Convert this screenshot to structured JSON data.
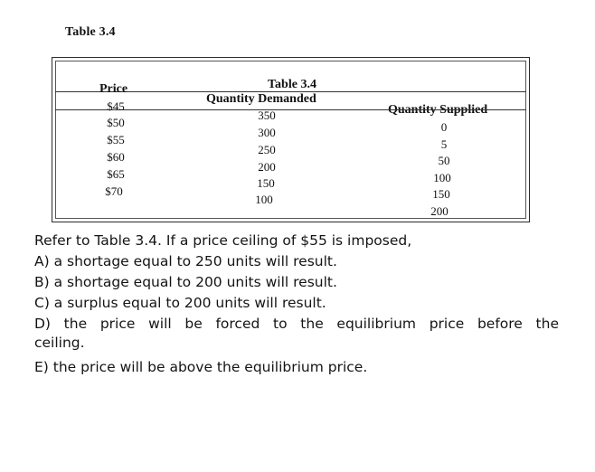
{
  "heading": "Table 3.4",
  "table": {
    "caption": "Table 3.4",
    "headers": {
      "price": "Price",
      "demanded": "Quantity Demanded",
      "supplied": "Quantity Supplied"
    },
    "rows": [
      {
        "price": "$45",
        "demanded": "350",
        "supplied": "0"
      },
      {
        "price": "$50",
        "demanded": "300",
        "supplied": "5"
      },
      {
        "price": "$55",
        "demanded": "250",
        "supplied": "50"
      },
      {
        "price": "$60",
        "demanded": "200",
        "supplied": "100"
      },
      {
        "price": "$65",
        "demanded": "150",
        "supplied": "150"
      },
      {
        "price": "$70",
        "demanded": "100",
        "supplied": "200"
      }
    ]
  },
  "question": {
    "stem": "Refer to Table 3.4. If a price ceiling of $55 is imposed,",
    "options": {
      "a": "A) a shortage equal to 250 units will result.",
      "b": "B) a shortage equal to 200 units will result.",
      "c": "C) a surplus equal to 200 units will result.",
      "d_line1": "D) the price will be forced to the equilibrium price before the",
      "d_line2": "ceiling.",
      "e": "E) the price will be above the equilibrium price."
    }
  }
}
